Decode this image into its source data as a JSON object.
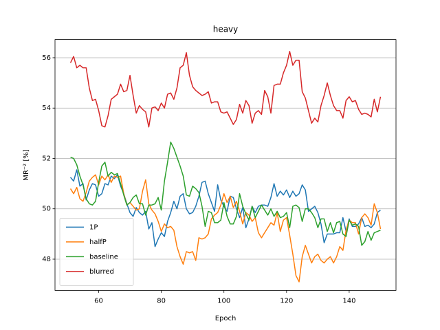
{
  "chart_data": {
    "type": "line",
    "title": "heavy",
    "xlabel": "Epoch",
    "ylabel": "MR⁻² [%]",
    "x": [
      51,
      52,
      53,
      54,
      55,
      56,
      57,
      58,
      59,
      60,
      61,
      62,
      63,
      64,
      65,
      66,
      67,
      68,
      69,
      70,
      71,
      72,
      73,
      74,
      75,
      76,
      77,
      78,
      79,
      80,
      81,
      82,
      83,
      84,
      85,
      86,
      87,
      88,
      89,
      90,
      91,
      92,
      93,
      94,
      95,
      96,
      97,
      98,
      99,
      100,
      101,
      102,
      103,
      104,
      105,
      106,
      107,
      108,
      109,
      110,
      111,
      112,
      113,
      114,
      115,
      116,
      117,
      118,
      119,
      120,
      121,
      122,
      123,
      124,
      125,
      126,
      127,
      128,
      129,
      130,
      131,
      132,
      133,
      134,
      135,
      136,
      137,
      138,
      139,
      140,
      141,
      142,
      143,
      144,
      145,
      146,
      147,
      148,
      149,
      150
    ],
    "series": [
      {
        "name": "1P",
        "color": "#1f77b4",
        "values": [
          51.25,
          51.1,
          51.55,
          50.9,
          51.0,
          50.35,
          50.75,
          51.0,
          50.95,
          50.5,
          50.6,
          51.0,
          50.95,
          51.3,
          51.2,
          51.35,
          50.9,
          50.6,
          50.2,
          49.85,
          49.7,
          50.05,
          49.85,
          49.75,
          49.9,
          49.2,
          49.45,
          48.5,
          48.8,
          49.05,
          48.9,
          49.5,
          49.85,
          50.3,
          50.0,
          50.5,
          50.6,
          50.0,
          49.8,
          49.85,
          50.1,
          50.5,
          51.05,
          51.1,
          50.6,
          50.25,
          49.9,
          50.95,
          50.35,
          50.1,
          49.9,
          50.5,
          50.45,
          50.0,
          49.65,
          50.05,
          49.25,
          49.6,
          50.1,
          49.85,
          50.1,
          50.15,
          50.15,
          50.1,
          50.45,
          51.0,
          50.5,
          50.7,
          50.55,
          50.75,
          50.45,
          50.7,
          50.5,
          50.6,
          50.95,
          50.75,
          49.9,
          50.0,
          50.1,
          49.85,
          49.4,
          48.65,
          49.0,
          49.0,
          49.0,
          49.05,
          49.05,
          49.65,
          49.1,
          49.6,
          49.3,
          49.3,
          49.4,
          49.65,
          49.3,
          49.35,
          49.25,
          49.4,
          49.85,
          49.95
        ]
      },
      {
        "name": "halfP",
        "color": "#ff7f0e",
        "values": [
          50.8,
          50.6,
          50.85,
          50.4,
          50.3,
          50.65,
          51.1,
          51.25,
          51.35,
          50.95,
          51.3,
          51.15,
          51.35,
          51.05,
          51.3,
          51.25,
          51.3,
          50.6,
          50.15,
          50.25,
          50.1,
          49.95,
          50.0,
          50.7,
          51.15,
          50.2,
          49.95,
          49.8,
          49.5,
          49.1,
          49.4,
          49.25,
          49.3,
          49.15,
          48.5,
          48.1,
          47.8,
          48.3,
          48.25,
          48.3,
          47.95,
          48.85,
          48.8,
          48.85,
          49.0,
          49.6,
          49.75,
          49.85,
          50.15,
          50.6,
          50.25,
          50.5,
          50.05,
          50.3,
          49.9,
          49.4,
          49.85,
          49.75,
          49.5,
          49.65,
          49.05,
          48.85,
          49.05,
          49.25,
          49.45,
          49.35,
          49.85,
          49.1,
          49.55,
          49.65,
          48.95,
          48.2,
          47.35,
          47.1,
          48.1,
          48.55,
          48.2,
          47.85,
          48.1,
          48.2,
          47.95,
          47.85,
          48.0,
          48.1,
          47.85,
          48.1,
          48.5,
          48.35,
          49.15,
          49.55,
          49.45,
          49.45,
          49.0,
          49.65,
          49.8,
          49.65,
          49.35,
          50.2,
          49.85,
          49.2
        ]
      },
      {
        "name": "baseline",
        "color": "#2ca02c",
        "values": [
          52.05,
          52.0,
          51.75,
          51.3,
          50.95,
          50.4,
          50.2,
          50.15,
          50.3,
          51.05,
          51.7,
          51.85,
          51.3,
          51.45,
          51.35,
          51.4,
          51.0,
          50.55,
          50.15,
          50.25,
          50.45,
          50.55,
          50.2,
          50.2,
          49.75,
          50.15,
          50.15,
          50.2,
          50.45,
          49.95,
          51.1,
          51.85,
          52.65,
          52.4,
          52.05,
          51.7,
          51.3,
          50.55,
          50.5,
          50.9,
          50.8,
          50.65,
          50.1,
          49.3,
          49.9,
          49.85,
          49.45,
          49.45,
          49.55,
          50.25,
          49.7,
          49.4,
          49.4,
          49.7,
          50.6,
          50.1,
          49.8,
          49.55,
          50.1,
          49.65,
          49.9,
          50.15,
          49.95,
          49.75,
          50.0,
          49.7,
          49.9,
          49.65,
          49.7,
          49.85,
          49.25,
          50.1,
          50.15,
          50.05,
          49.5,
          50.0,
          50.0,
          49.85,
          49.65,
          49.25,
          49.6,
          49.6,
          49.1,
          49.45,
          49.05,
          49.45,
          49.5,
          49.0,
          48.9,
          49.55,
          49.35,
          49.4,
          49.3,
          48.55,
          48.7,
          49.1,
          48.75,
          49.05,
          49.1,
          49.15
        ]
      },
      {
        "name": "blurred",
        "color": "#d62728",
        "values": [
          55.8,
          56.05,
          55.6,
          55.7,
          55.6,
          55.6,
          54.8,
          54.3,
          54.35,
          53.9,
          53.3,
          53.25,
          53.7,
          54.35,
          54.45,
          54.55,
          54.95,
          54.65,
          54.7,
          55.3,
          54.5,
          53.8,
          54.1,
          53.95,
          53.85,
          53.25,
          54.0,
          54.05,
          53.9,
          54.2,
          54.0,
          54.55,
          54.6,
          54.35,
          54.8,
          55.6,
          55.7,
          56.2,
          55.3,
          54.85,
          54.7,
          54.6,
          54.5,
          54.55,
          54.65,
          54.2,
          54.25,
          54.25,
          53.85,
          53.8,
          53.85,
          53.6,
          53.35,
          53.55,
          54.15,
          53.8,
          54.3,
          54.1,
          53.4,
          53.8,
          53.9,
          53.75,
          54.7,
          54.45,
          53.8,
          54.9,
          54.95,
          54.95,
          55.4,
          55.7,
          56.25,
          55.7,
          55.9,
          55.9,
          54.65,
          54.4,
          53.9,
          53.4,
          53.6,
          53.45,
          54.1,
          54.5,
          55.0,
          54.5,
          54.1,
          53.9,
          53.9,
          53.6,
          54.3,
          54.45,
          54.25,
          54.3,
          53.95,
          53.75,
          53.8,
          53.75,
          53.65,
          54.35,
          53.85,
          54.45
        ]
      }
    ],
    "xlim": [
      46.05,
      154.95
    ],
    "ylim": [
      46.76,
      56.72
    ],
    "xticks": [
      60,
      80,
      100,
      120,
      140
    ],
    "yticks": [
      48,
      50,
      52,
      54,
      56
    ],
    "grid": "y",
    "legend": "lower left"
  }
}
